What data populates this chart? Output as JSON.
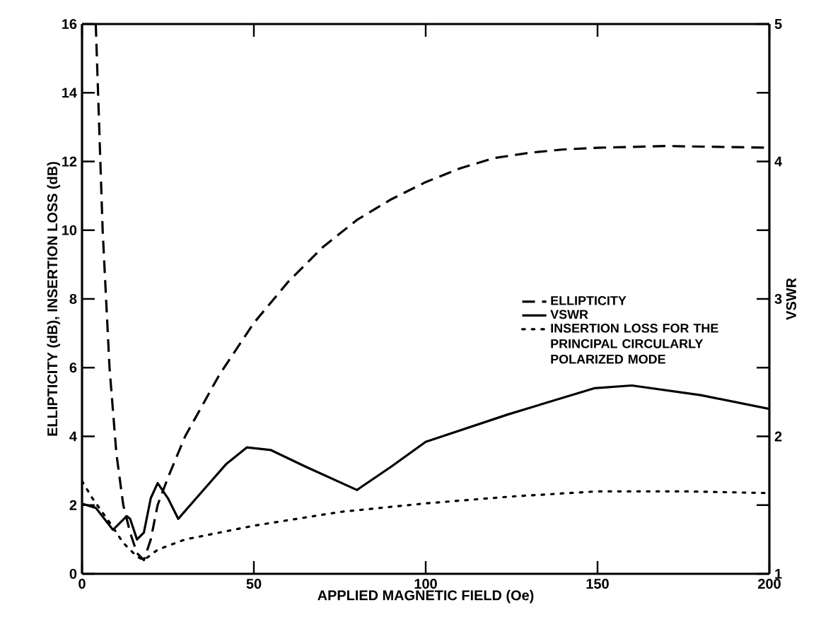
{
  "chart_data": {
    "type": "line",
    "xlabel": "APPLIED MAGNETIC FIELD (Oe)",
    "ylabel": "ELLIPTICITY (dB), INSERTION LOSS (dB)",
    "y2label": "VSWR",
    "xlim": [
      0,
      200
    ],
    "ylim": [
      0,
      16
    ],
    "y2lim": [
      1,
      5
    ],
    "xticks": [
      0,
      50,
      100,
      150,
      200
    ],
    "yticks": [
      0,
      2,
      4,
      6,
      8,
      10,
      12,
      14,
      16
    ],
    "y2ticks": [
      1,
      {
        "value": 1.5,
        "label": null
      },
      2,
      {
        "value": 2.5,
        "label": null
      },
      3,
      {
        "value": 3.5,
        "label": null
      },
      4,
      {
        "value": 4.5,
        "label": null
      },
      5
    ],
    "legend": "center right",
    "grid": false,
    "series": [
      {
        "name": "ELLIPTICITY",
        "color": "#000000",
        "line_style": "dashed",
        "x": [
          4,
          6,
          8,
          10,
          12,
          14,
          16,
          18,
          20,
          22,
          25,
          30,
          40,
          50,
          60,
          70,
          80,
          90,
          100,
          110,
          120,
          130,
          140,
          150,
          170,
          200
        ],
        "values": [
          16,
          10,
          6,
          3.5,
          2,
          1.2,
          0.6,
          0.4,
          1,
          2,
          2.8,
          4,
          5.8,
          7.3,
          8.5,
          9.5,
          10.3,
          10.9,
          11.4,
          11.8,
          12.1,
          12.25,
          12.35,
          12.4,
          12.45,
          12.4
        ]
      },
      {
        "name": "VSWR",
        "color": "#000000",
        "line_style": "solid",
        "axis": "y2",
        "x": [
          0,
          4,
          9,
          13,
          14,
          16,
          18,
          20,
          22,
          25,
          28,
          35,
          42,
          48,
          55,
          65,
          80,
          90,
          100,
          124,
          149,
          160,
          180,
          200
        ],
        "values": [
          1.51,
          1.48,
          1.32,
          1.42,
          1.4,
          1.25,
          1.3,
          1.55,
          1.66,
          1.55,
          1.4,
          1.6,
          1.8,
          1.92,
          1.9,
          1.78,
          1.61,
          1.78,
          1.96,
          2.16,
          2.35,
          2.37,
          2.3,
          2.2
        ]
      },
      {
        "name": "INSERTION LOSS FOR THE PRINCIPAL CIRCULARLY POLARIZED MODE",
        "color": "#000000",
        "line_style": "dotted",
        "x": [
          0,
          3,
          8,
          12,
          16,
          18,
          22,
          30,
          50,
          75,
          100,
          125,
          150,
          175,
          200
        ],
        "values": [
          2.7,
          2.2,
          1.5,
          0.9,
          0.5,
          0.4,
          0.7,
          1.0,
          1.4,
          1.8,
          2.05,
          2.25,
          2.4,
          2.4,
          2.35
        ]
      }
    ]
  }
}
